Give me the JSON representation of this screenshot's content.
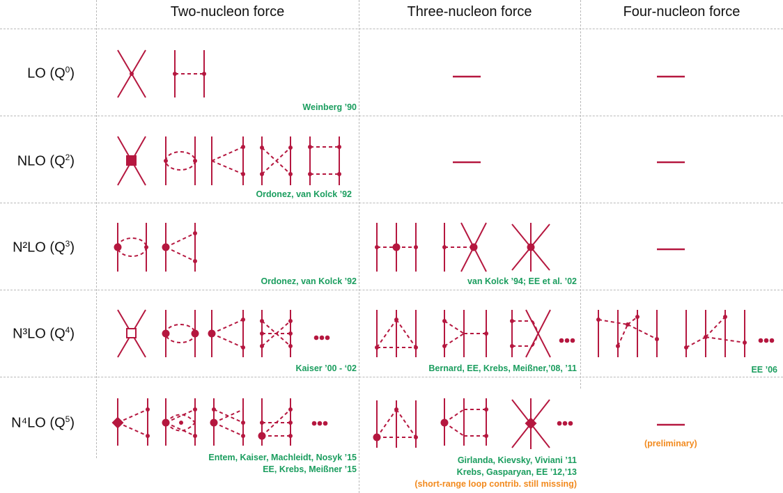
{
  "headers": {
    "two": "Two-nucleon force",
    "three": "Three-nucleon force",
    "four": "Four-nucleon force"
  },
  "rows": [
    {
      "order": "LO",
      "power": "0"
    },
    {
      "order": "NLO",
      "power": "2"
    },
    {
      "order": "N²LO",
      "power": "3"
    },
    {
      "order": "N³LO",
      "power": "4"
    },
    {
      "order": "N⁴LO",
      "power": "5"
    }
  ],
  "citations": {
    "lo_two": "Weinberg ’90",
    "nlo_two": "Ordonez, van Kolck ’92",
    "n2lo_two": "Ordonez, van Kolck ’92",
    "n2lo_three": "van Kolck ’94;  EE et al. ’02",
    "n3lo_two": "Kaiser ’00 - ‘02",
    "n3lo_three": "Bernard, EE, Krebs, Meißner,’08, ’11",
    "n3lo_four": "EE ’06",
    "n4lo_two_1": "Entem, Kaiser, Machleidt, Nosyk ’15",
    "n4lo_two_2": "EE, Krebs, Meißner ’15",
    "n4lo_three_1": "Girlanda, Kievsky, Viviani ’11",
    "n4lo_three_2": "Krebs, Gasparyan, EE ’12,’13",
    "n4lo_three_3": "(short-range loop contrib. still missing)",
    "n4lo_four": "(preliminary)"
  },
  "colors": {
    "diagram": "#b5173f",
    "citation": "#1a9d5e",
    "note": "#f28a1e",
    "grid": "#b9b9b9"
  }
}
